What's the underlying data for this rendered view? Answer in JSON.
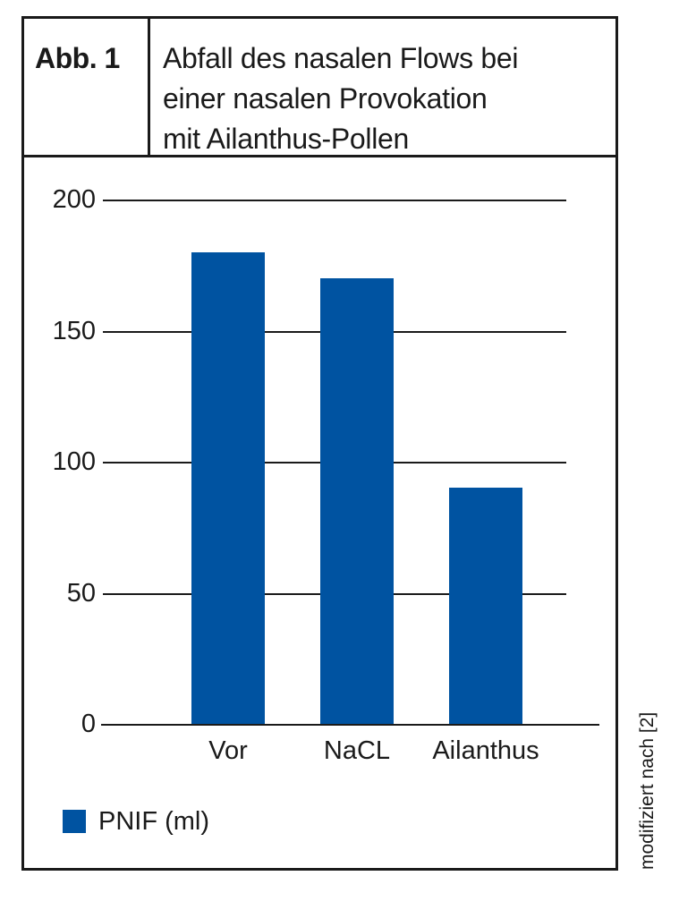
{
  "figure": {
    "label": "Abb. 1",
    "title_lines": [
      "Abfall des nasalen Flows bei",
      "einer nasalen Provokation",
      "mit Ailanthus-Pollen"
    ],
    "source_note": "modifiziert nach [2]"
  },
  "chart_data": {
    "type": "bar",
    "title": "Abfall des nasalen Flows bei einer nasalen Provokation mit Ailanthus-Pollen",
    "categories": [
      "Vor",
      "NaCL",
      "Ailanthus"
    ],
    "values": [
      180,
      170,
      90
    ],
    "series_name": "PNIF (ml)",
    "xlabel": "",
    "ylabel": "",
    "ylim": [
      0,
      200
    ],
    "yticks": [
      200,
      150,
      100,
      50,
      0
    ],
    "grid": true,
    "legend_position": "bottom-left",
    "bar_color": "#0053a1"
  },
  "colors": {
    "bar": "#0053a1",
    "ink": "#1a1a1a",
    "background": "#ffffff"
  }
}
